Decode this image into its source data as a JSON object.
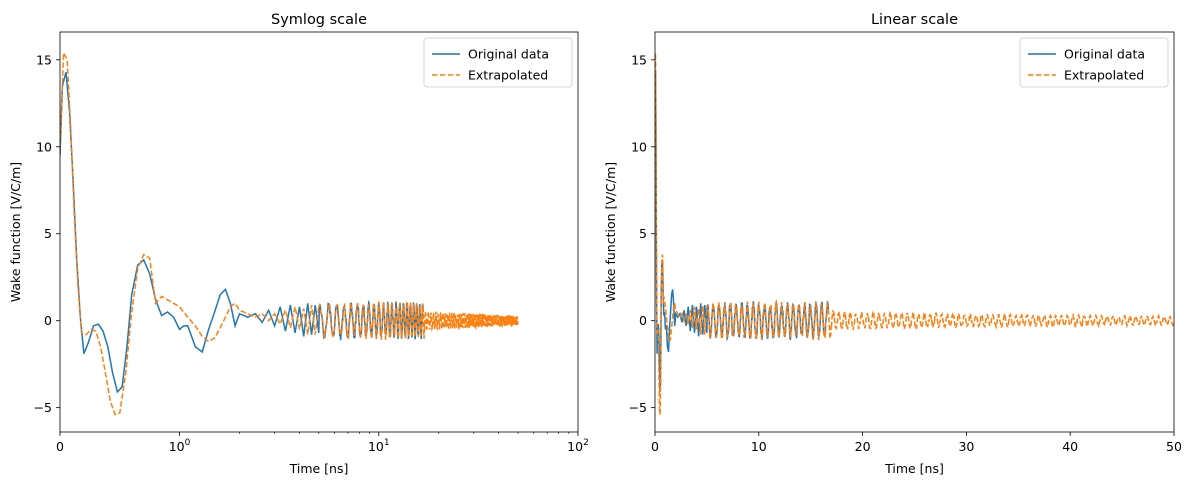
{
  "chart_data": [
    {
      "type": "line",
      "title": "Symlog scale",
      "xlabel": "Time [ns]",
      "ylabel": "Wake function [V/C/m]",
      "xscale": "symlog",
      "xlim": [
        0,
        100
      ],
      "ylim": [
        -6.4,
        16.6
      ],
      "xticks": [
        {
          "value": 0,
          "base": "0",
          "exp": ""
        },
        {
          "value": 1,
          "base": "10",
          "exp": "0"
        },
        {
          "value": 10,
          "base": "10",
          "exp": "1"
        },
        {
          "value": 100,
          "base": "10",
          "exp": "2"
        }
      ],
      "yticks": [
        -5,
        0,
        5,
        10,
        15
      ],
      "legend": {
        "position": "top-right",
        "entries": [
          "Original data",
          "Extrapolated"
        ]
      },
      "series": [
        {
          "name": "Original data",
          "color": "#1f77b4",
          "style": "solid",
          "x": [
            0,
            0.02,
            0.05,
            0.08,
            0.11,
            0.14,
            0.17,
            0.2,
            0.24,
            0.28,
            0.32,
            0.36,
            0.4,
            0.44,
            0.48,
            0.52,
            0.56,
            0.6,
            0.65,
            0.7,
            0.75,
            0.8,
            0.85,
            0.9,
            0.95,
            1.0,
            1.05,
            1.1,
            1.2,
            1.3,
            1.4,
            1.5,
            1.6,
            1.7,
            1.8,
            1.9,
            2.0,
            2.2,
            2.4,
            2.6,
            2.8,
            3.0,
            3.2,
            3.4,
            3.6,
            3.8,
            4.0,
            4.2,
            4.4,
            4.6,
            4.8,
            5.0
          ],
          "y": [
            9.5,
            13.5,
            14.3,
            12.0,
            8.0,
            3.5,
            0.2,
            -1.9,
            -1.2,
            -0.3,
            -0.2,
            -0.6,
            -1.5,
            -3.0,
            -4.1,
            -3.8,
            -1.5,
            1.5,
            3.2,
            3.5,
            2.7,
            1.2,
            0.3,
            0.5,
            0.2,
            -0.5,
            -0.3,
            -0.3,
            -1.5,
            -1.8,
            -0.5,
            0.5,
            1.5,
            1.8,
            1.0,
            -0.3,
            0.4,
            0.2,
            0.4,
            -0.1,
            0.6,
            -0.3,
            0.8,
            -0.6,
            0.9,
            -0.7,
            0.8,
            -0.9,
            1.0,
            -0.8,
            0.9,
            -0.7
          ],
          "osc": {
            "from": 5.0,
            "to": 16.7,
            "period": 0.55,
            "amp": 0.9
          }
        },
        {
          "name": "Extrapolated",
          "color": "#ff7f0e",
          "style": "dashed",
          "x": [
            0,
            0.03,
            0.06,
            0.09,
            0.12,
            0.15,
            0.18,
            0.22,
            0.26,
            0.3,
            0.34,
            0.38,
            0.42,
            0.46,
            0.5,
            0.55,
            0.6,
            0.65,
            0.7,
            0.75,
            0.8,
            0.85,
            0.9,
            0.95,
            1.0,
            1.1,
            1.2,
            1.3,
            1.4,
            1.5,
            1.6,
            1.7,
            1.8,
            1.9,
            2.0,
            2.2,
            2.4,
            2.6,
            2.8,
            3.0,
            3.2,
            3.4,
            3.6,
            3.8,
            4.0,
            4.2,
            4.4,
            4.6,
            4.8,
            5.0
          ],
          "y": [
            10.0,
            15.4,
            15.0,
            11.0,
            6.0,
            2.0,
            -0.7,
            -0.8,
            -0.5,
            -0.6,
            -1.5,
            -3.0,
            -4.6,
            -5.4,
            -5.3,
            -3.0,
            0.5,
            3.0,
            3.8,
            3.6,
            1.0,
            1.4,
            1.2,
            1.0,
            0.8,
            0.2,
            -0.3,
            -0.9,
            -1.2,
            -1.0,
            -0.4,
            0.2,
            0.8,
            1.0,
            0.6,
            0.4,
            0.2,
            0.4,
            0.0,
            0.4,
            -0.2,
            0.6,
            -0.4,
            0.8,
            -0.5,
            0.7,
            -0.8,
            0.9,
            -0.8,
            0.8
          ],
          "osc": {
            "from": 5.0,
            "to": 50.0,
            "period": 0.55,
            "amp": 0.9
          }
        }
      ]
    },
    {
      "type": "line",
      "title": "Linear scale",
      "xlabel": "Time [ns]",
      "ylabel": "Wake function [V/C/m]",
      "xscale": "linear",
      "xlim": [
        0,
        50
      ],
      "ylim": [
        -6.4,
        16.6
      ],
      "xticks": [
        {
          "value": 0,
          "base": "0",
          "exp": ""
        },
        {
          "value": 10,
          "base": "10",
          "exp": ""
        },
        {
          "value": 20,
          "base": "20",
          "exp": ""
        },
        {
          "value": 30,
          "base": "30",
          "exp": ""
        },
        {
          "value": 40,
          "base": "40",
          "exp": ""
        },
        {
          "value": 50,
          "base": "50",
          "exp": ""
        }
      ],
      "yticks": [
        -5,
        0,
        5,
        10,
        15
      ],
      "legend": {
        "position": "top-right",
        "entries": [
          "Original data",
          "Extrapolated"
        ]
      },
      "series": [
        {
          "name": "Original data",
          "color": "#1f77b4",
          "style": "solid",
          "x": [
            0,
            0.02,
            0.05,
            0.08,
            0.11,
            0.14,
            0.17,
            0.2,
            0.24,
            0.28,
            0.32,
            0.36,
            0.4,
            0.44,
            0.48,
            0.52,
            0.56,
            0.6,
            0.65,
            0.7,
            0.75,
            0.8,
            0.85,
            0.9,
            0.95,
            1.0,
            1.05,
            1.1,
            1.2,
            1.3,
            1.4,
            1.5,
            1.6,
            1.7,
            1.8,
            1.9,
            2.0,
            2.2,
            2.4,
            2.6,
            2.8,
            3.0,
            3.2,
            3.4,
            3.6,
            3.8,
            4.0,
            4.2,
            4.4,
            4.6,
            4.8,
            5.0
          ],
          "y": [
            9.5,
            13.5,
            14.3,
            12.0,
            8.0,
            3.5,
            0.2,
            -1.9,
            -1.2,
            -0.3,
            -0.2,
            -0.6,
            -1.5,
            -3.0,
            -4.1,
            -3.8,
            -1.5,
            1.5,
            3.2,
            3.5,
            2.7,
            1.2,
            0.3,
            0.5,
            0.2,
            -0.5,
            -0.3,
            -0.3,
            -1.5,
            -1.8,
            -0.5,
            0.5,
            1.5,
            1.8,
            1.0,
            -0.3,
            0.4,
            0.2,
            0.4,
            -0.1,
            0.6,
            -0.3,
            0.8,
            -0.6,
            0.9,
            -0.7,
            0.8,
            -0.9,
            1.0,
            -0.8,
            0.9,
            -0.7
          ],
          "osc": {
            "from": 5.0,
            "to": 16.7,
            "period": 0.55,
            "amp": 0.9
          }
        },
        {
          "name": "Extrapolated",
          "color": "#ff7f0e",
          "style": "dashed",
          "x": [
            0,
            0.03,
            0.06,
            0.09,
            0.12,
            0.15,
            0.18,
            0.22,
            0.26,
            0.3,
            0.34,
            0.38,
            0.42,
            0.46,
            0.5,
            0.55,
            0.6,
            0.65,
            0.7,
            0.75,
            0.8,
            0.85,
            0.9,
            0.95,
            1.0,
            1.1,
            1.2,
            1.3,
            1.4,
            1.5,
            1.6,
            1.7,
            1.8,
            1.9,
            2.0,
            2.2,
            2.4,
            2.6,
            2.8,
            3.0,
            3.2,
            3.4,
            3.6,
            3.8,
            4.0,
            4.2,
            4.4,
            4.6,
            4.8,
            5.0
          ],
          "y": [
            10.0,
            15.4,
            15.0,
            11.0,
            6.0,
            2.0,
            -0.7,
            -0.8,
            -0.5,
            -0.6,
            -1.5,
            -3.0,
            -4.6,
            -5.4,
            -5.3,
            -3.0,
            0.5,
            3.0,
            3.8,
            3.6,
            1.0,
            1.4,
            1.2,
            1.0,
            0.8,
            0.2,
            -0.3,
            -0.9,
            -1.2,
            -1.0,
            -0.4,
            0.2,
            0.8,
            1.0,
            0.6,
            0.4,
            0.2,
            0.4,
            0.0,
            0.4,
            -0.2,
            0.6,
            -0.4,
            0.8,
            -0.5,
            0.7,
            -0.8,
            0.9,
            -0.8,
            0.8
          ],
          "osc": {
            "from": 5.0,
            "to": 50.0,
            "period": 0.55,
            "amp": 0.9
          }
        }
      ]
    }
  ]
}
